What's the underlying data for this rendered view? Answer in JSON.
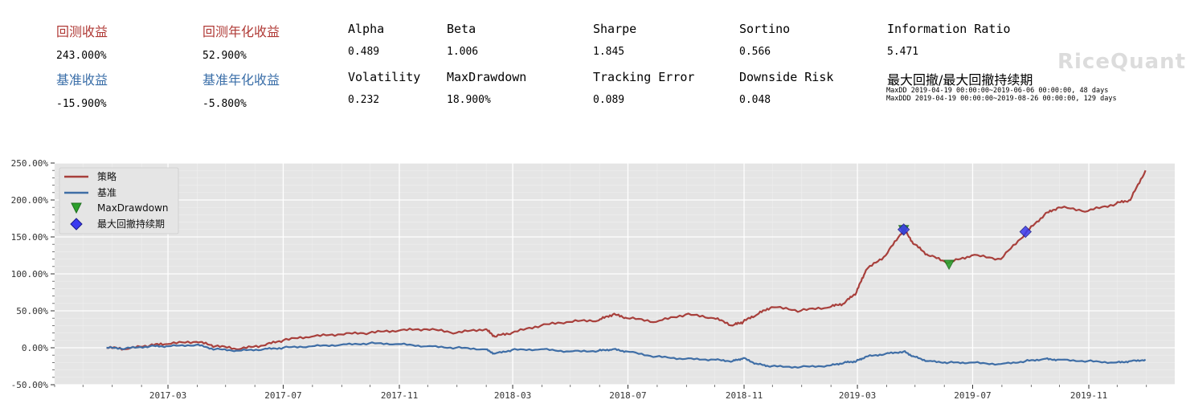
{
  "metrics": {
    "row1": [
      {
        "label": "回测收益",
        "value": "243.000%",
        "style": "red"
      },
      {
        "label": "回测年化收益",
        "value": "52.900%",
        "style": "red"
      },
      {
        "label": "Alpha",
        "value": "0.489",
        "style": "plain"
      },
      {
        "label": "Beta",
        "value": "1.006",
        "style": "plain"
      },
      {
        "label": "Sharpe",
        "value": "1.845",
        "style": "plain"
      },
      {
        "label": "Sortino",
        "value": "0.566",
        "style": "plain"
      },
      {
        "label": "Information Ratio",
        "value": "5.471",
        "style": "plain"
      }
    ],
    "row2": [
      {
        "label": "基准收益",
        "value": "-15.900%",
        "style": "blue"
      },
      {
        "label": "基准年化收益",
        "value": "-5.800%",
        "style": "blue"
      },
      {
        "label": "Volatility",
        "value": "0.232",
        "style": "plain"
      },
      {
        "label": "MaxDrawdown",
        "value": "18.900%",
        "style": "plain"
      },
      {
        "label": "Tracking Error",
        "value": "0.089",
        "style": "plain"
      },
      {
        "label": "Downside Risk",
        "value": "0.048",
        "style": "plain"
      }
    ],
    "maxdd_title": "最大回撤/最大回撤持续期",
    "maxdd_line": "MaxDD  2019-04-19 00:00:00~2019-06-06 00:00:00, 48 days",
    "maxddd_line": "MaxDDD 2019-04-19 00:00:00~2019-08-26 00:00:00, 129 days"
  },
  "logo_text": "RiceQuant",
  "colors": {
    "strategy": "#a8403c",
    "benchmark": "#3f6ea6",
    "maxdd_marker": "#2ca02c",
    "maxddd_marker": "#3a3af0",
    "plot_bg": "#e5e5e5",
    "grid": "#ffffff"
  },
  "chart_data": {
    "type": "line",
    "title": "",
    "xlabel": "",
    "ylabel": "",
    "x_ticks": [
      "2017-03",
      "2017-07",
      "2017-11",
      "2018-03",
      "2018-07",
      "2018-11",
      "2019-03",
      "2019-07",
      "2019-11"
    ],
    "y_ticks": [
      "250.00%",
      "200.00%",
      "150.00%",
      "100.00%",
      "50.00%",
      "0.00%",
      "-50.00%"
    ],
    "ylim": [
      -50,
      250
    ],
    "xlim": [
      "2016-11-01",
      "2020-01-31"
    ],
    "grid": true,
    "legend_position": "top-left",
    "series": [
      {
        "name": "策略",
        "x": [
          "2016-12-26",
          "2017-01-15",
          "2017-02-10",
          "2017-03-01",
          "2017-03-31",
          "2017-04-20",
          "2017-05-15",
          "2017-06-10",
          "2017-07-01",
          "2017-07-31",
          "2017-08-31",
          "2017-09-30",
          "2017-10-31",
          "2017-11-30",
          "2017-12-31",
          "2018-01-31",
          "2018-02-10",
          "2018-02-28",
          "2018-03-31",
          "2018-04-30",
          "2018-05-31",
          "2018-06-15",
          "2018-06-30",
          "2018-07-31",
          "2018-08-31",
          "2018-09-30",
          "2018-10-20",
          "2018-10-31",
          "2018-11-15",
          "2018-11-30",
          "2018-12-31",
          "2019-01-31",
          "2019-02-15",
          "2019-02-28",
          "2019-03-10",
          "2019-03-31",
          "2019-04-19",
          "2019-04-30",
          "2019-05-15",
          "2019-06-06",
          "2019-06-30",
          "2019-07-31",
          "2019-08-26",
          "2019-09-15",
          "2019-09-30",
          "2019-10-31",
          "2019-11-30",
          "2019-12-15",
          "2019-12-31"
        ],
        "y": [
          0,
          -2,
          3,
          5,
          8,
          2,
          -2,
          3,
          10,
          15,
          18,
          20,
          23,
          25,
          20,
          25,
          15,
          20,
          30,
          35,
          37,
          45,
          40,
          35,
          45,
          40,
          30,
          35,
          45,
          55,
          50,
          55,
          60,
          75,
          105,
          125,
          160,
          140,
          125,
          115,
          125,
          120,
          155,
          180,
          190,
          185,
          195,
          200,
          240
        ]
      },
      {
        "name": "基准",
        "x": [
          "2016-12-26",
          "2017-01-15",
          "2017-02-10",
          "2017-03-01",
          "2017-03-31",
          "2017-04-20",
          "2017-05-15",
          "2017-06-10",
          "2017-07-01",
          "2017-07-31",
          "2017-08-31",
          "2017-09-30",
          "2017-10-31",
          "2017-11-30",
          "2017-12-31",
          "2018-01-31",
          "2018-02-10",
          "2018-02-28",
          "2018-03-31",
          "2018-04-30",
          "2018-05-31",
          "2018-06-15",
          "2018-06-30",
          "2018-07-31",
          "2018-08-31",
          "2018-09-30",
          "2018-10-20",
          "2018-10-31",
          "2018-11-15",
          "2018-11-30",
          "2018-12-31",
          "2019-01-31",
          "2019-02-15",
          "2019-02-28",
          "2019-03-10",
          "2019-03-31",
          "2019-04-19",
          "2019-04-30",
          "2019-05-15",
          "2019-06-06",
          "2019-06-30",
          "2019-07-31",
          "2019-08-26",
          "2019-09-15",
          "2019-09-30",
          "2019-10-31",
          "2019-11-30",
          "2019-12-15",
          "2019-12-31"
        ],
        "y": [
          0,
          -1,
          2,
          2,
          4,
          -2,
          -4,
          -2,
          0,
          2,
          4,
          6,
          5,
          2,
          0,
          -2,
          -8,
          -3,
          -2,
          -5,
          -4,
          -2,
          -5,
          -12,
          -15,
          -16,
          -18,
          -14,
          -22,
          -25,
          -26,
          -24,
          -20,
          -18,
          -12,
          -8,
          -5,
          -12,
          -18,
          -20,
          -20,
          -22,
          -18,
          -15,
          -16,
          -18,
          -20,
          -18,
          -16
        ]
      }
    ],
    "markers": [
      {
        "name": "MaxDrawdown",
        "shape": "triangle-down",
        "points": [
          {
            "x": "2019-04-19",
            "y": 160
          },
          {
            "x": "2019-06-06",
            "y": 113
          }
        ]
      },
      {
        "name": "最大回撤持续期",
        "shape": "diamond",
        "points": [
          {
            "x": "2019-04-19",
            "y": 160
          },
          {
            "x": "2019-08-26",
            "y": 157
          }
        ]
      }
    ]
  }
}
